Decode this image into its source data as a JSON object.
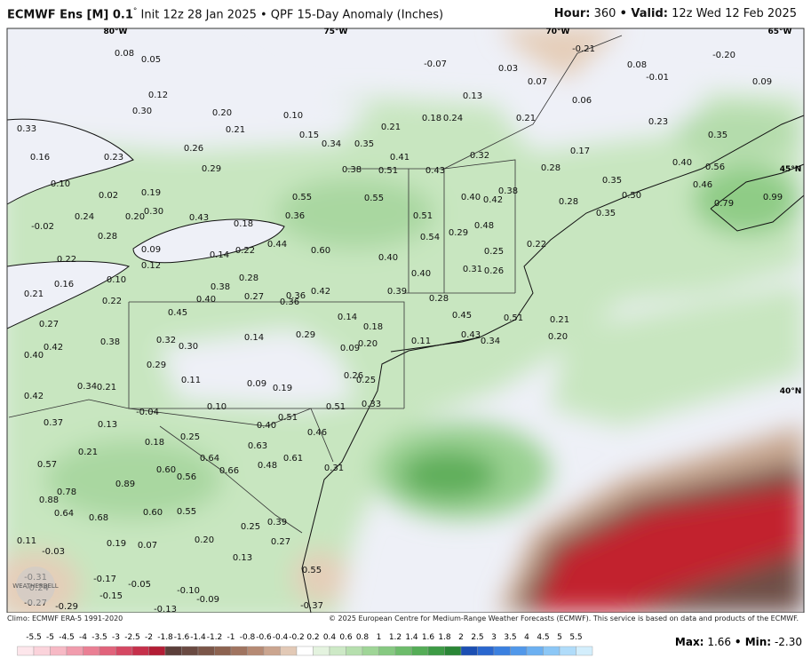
{
  "header": {
    "title_model": "ECMWF Ens [M] 0.1",
    "degree": "°",
    "title_rest": "Init 12z 28 Jan 2025 • QPF 15-Day Anomaly (Inches)",
    "hour_label": "Hour:",
    "hour": "360",
    "valid_label": "• Valid:",
    "valid": "12z Wed 12 Feb 2025"
  },
  "map": {
    "lon_labels": [
      "80°W",
      "75°W",
      "70°W",
      "65°W"
    ],
    "lat_labels": [
      "45°N",
      "40°N"
    ],
    "logo": "WEATHERBELL",
    "labels": [
      "0.08",
      "0.05",
      "-0.07",
      "0.03",
      "-0.21",
      "0.08",
      "-0.01",
      "-0.20",
      "0.09",
      "0.07",
      "0.12",
      "0.13",
      "0.06",
      "0.30",
      "0.20",
      "0.10",
      "0.18",
      "0.24",
      "0.21",
      "0.23",
      "0.33",
      "0.21",
      "0.15",
      "0.21",
      "0.35",
      "0.34",
      "0.35",
      "0.26",
      "0.23",
      "0.17",
      "0.16",
      "0.29",
      "0.38",
      "0.51",
      "0.43",
      "0.32",
      "0.28",
      "0.40",
      "0.56",
      "0.41",
      "0.10",
      "0.02",
      "0.19",
      "0.35",
      "0.46",
      "0.38",
      "0.50",
      "0.55",
      "0.55",
      "0.40",
      "0.42",
      "0.99",
      "0.79",
      "0.28",
      "0.30",
      "0.24",
      "0.20",
      "0.43",
      "0.36",
      "0.51",
      "0.35",
      "-0.02",
      "0.18",
      "0.48",
      "0.29",
      "0.28",
      "0.54",
      "0.44",
      "0.60",
      "0.09",
      "0.22",
      "0.25",
      "0.22",
      "0.14",
      "0.22",
      "0.40",
      "0.12",
      "0.31",
      "0.26",
      "0.10",
      "0.28",
      "0.40",
      "0.16",
      "0.38",
      "0.42",
      "0.39",
      "0.21",
      "0.40",
      "0.27",
      "0.36",
      "0.28",
      "0.22",
      "0.36",
      "0.45",
      "0.14",
      "0.45",
      "0.51",
      "0.21",
      "0.27",
      "0.18",
      "0.38",
      "0.32",
      "0.30",
      "0.14",
      "0.29",
      "0.11",
      "0.43",
      "0.34",
      "0.20",
      "0.42",
      "0.09",
      "0.20",
      "0.40",
      "0.29",
      "0.26",
      "0.25",
      "0.11",
      "0.09",
      "0.19",
      "0.34",
      "0.21",
      "0.42",
      "0.33",
      "0.10",
      "-0.04",
      "0.51",
      "0.51",
      "0.37",
      "0.13",
      "0.40",
      "0.46",
      "0.18",
      "0.25",
      "0.21",
      "0.63",
      "0.61",
      "0.64",
      "0.57",
      "0.60",
      "0.56",
      "0.66",
      "0.48",
      "0.31",
      "0.89",
      "0.78",
      "0.88",
      "0.64",
      "0.68",
      "0.60",
      "0.55",
      "0.25",
      "0.39",
      "0.11",
      "0.19",
      "0.07",
      "0.20",
      "0.27",
      "-0.03",
      "0.13",
      "-0.17",
      "-0.05",
      "0.55",
      "-0.31",
      "-0.24",
      "-0.27",
      "-0.29",
      "-0.15",
      "-0.10",
      "-0.09",
      "-0.13",
      "-0.37"
    ]
  },
  "footer": {
    "climo": "Climo: ECMWF ERA-5 1991-2020",
    "copyright": "© 2025 European Centre for Medium-Range Weather Forecasts (ECMWF). This service is based on data and products of the ECMWF.",
    "colorbar_labels": [
      "-5.5",
      "-5",
      "-4.5",
      "-4",
      "-3.5",
      "-3",
      "-2.5",
      "-2",
      "-1.8",
      "-1.6",
      "-1.4",
      "-1.2",
      "-1",
      "-0.8",
      "-0.6",
      "-0.4",
      "-0.2",
      "0.2",
      "0.4",
      "0.6",
      "0.8",
      "1",
      "1.2",
      "1.4",
      "1.6",
      "1.8",
      "2",
      "2.5",
      "3",
      "3.5",
      "4",
      "4.5",
      "5",
      "5.5"
    ],
    "max_label": "Max:",
    "max": "1.66",
    "min_label": "• Min:",
    "min": "-2.30"
  }
}
